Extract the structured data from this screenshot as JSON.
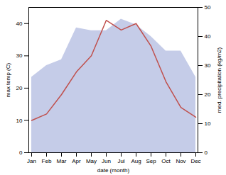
{
  "chart_data": {
    "type": "line",
    "xlabel": "date (month)",
    "ylabel": "max temp (C)",
    "y2label": "med. precipitation (kg/m2)",
    "categories": [
      "Jan",
      "Feb",
      "Mar",
      "Apr",
      "May",
      "Jun",
      "Jul",
      "Aug",
      "Sep",
      "Oct",
      "Nov",
      "Dec"
    ],
    "series": [
      {
        "type": "area",
        "axis": "y2",
        "color": "#c5cce8",
        "values": [
          26,
          30,
          32,
          43,
          42,
          42,
          46,
          44,
          40,
          35,
          35,
          26
        ]
      },
      {
        "type": "line",
        "color": "#c0504d",
        "values": [
          10,
          12,
          18,
          25,
          30,
          41,
          38,
          40,
          33,
          22,
          14,
          11
        ]
      }
    ],
    "ylim": [
      0,
      45
    ],
    "yticks": [
      0,
      10,
      20,
      30,
      40
    ],
    "y2lim": [
      0,
      50
    ],
    "y2ticks": [
      0,
      10,
      20,
      30,
      40,
      50
    ],
    "grid": false
  }
}
